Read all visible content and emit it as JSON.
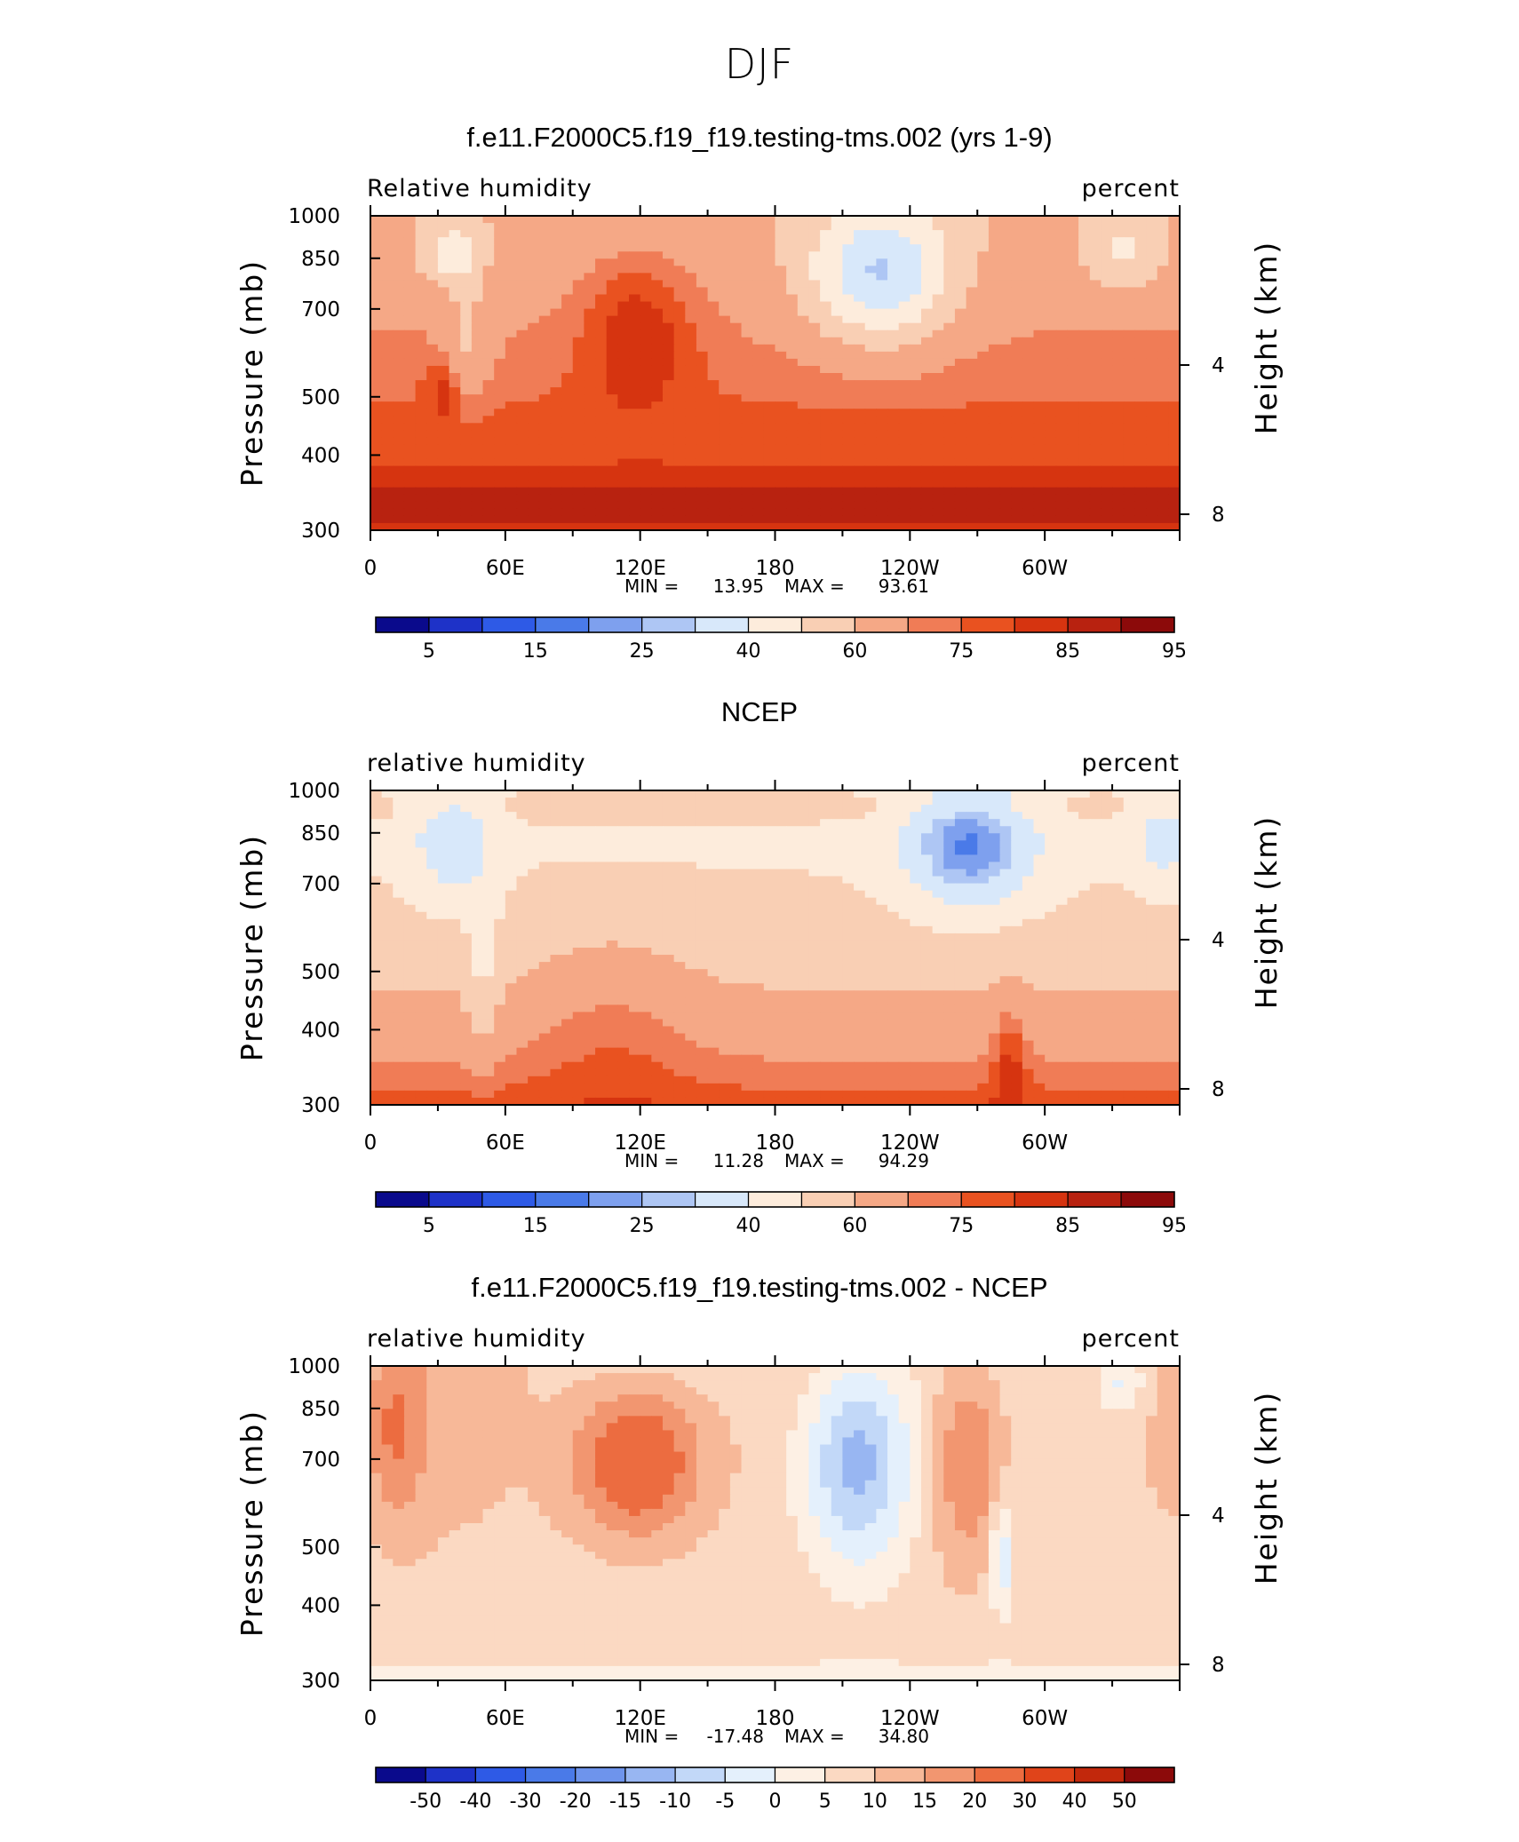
{
  "figure": {
    "title": "DJF"
  },
  "colors": {
    "levels_rh": [
      "#0a0a8c",
      "#1e32c8",
      "#2e5ae6",
      "#4a7ae8",
      "#7ea0ee",
      "#aec6f4",
      "#d8e8fa",
      "#fdecdc",
      "#f9cfb4",
      "#f5a886",
      "#f07c56",
      "#e95220",
      "#d63410",
      "#b82210",
      "#8c0a0a"
    ],
    "levels_diff": [
      "#0a0a8c",
      "#1e32c8",
      "#2e5ae6",
      "#4a7ae8",
      "#6e94ec",
      "#98b6f2",
      "#c2d8f8",
      "#e4f0fc",
      "#fdf0e4",
      "#fbd9c2",
      "#f7b898",
      "#f29670",
      "#ec6c40",
      "#e0441a",
      "#c2280c",
      "#8c0a0a"
    ],
    "mask": "#000000"
  },
  "chart_data": [
    {
      "type": "heatmap",
      "title": "f.e11.F2000C5.f19_f19.testing-tms.002 (yrs 1-9)",
      "left_label": "Relative humidity",
      "right_label": "percent",
      "ylabel": "Pressure (mb)",
      "ylabel_right": "Height (km)",
      "x_ticks": [
        "0",
        "60E",
        "120E",
        "180",
        "120W",
        "60W"
      ],
      "x_tick_lon": [
        0,
        60,
        120,
        180,
        240,
        300
      ],
      "xlim": [
        0,
        360
      ],
      "y_ticks": [
        "300",
        "400",
        "500",
        "700",
        "850",
        "1000"
      ],
      "y_tick_p": [
        300,
        400,
        500,
        700,
        850,
        1000
      ],
      "ylim": [
        1000,
        300
      ],
      "right_ticks": [
        "8",
        "4"
      ],
      "right_tick_km": [
        8,
        4
      ],
      "stats": {
        "min_label": "MIN =",
        "min": "13.95",
        "max_label": "MAX =",
        "max": "93.61"
      },
      "colorbar_labels": [
        "5",
        "15",
        "25",
        "40",
        "60",
        "75",
        "85",
        "95"
      ],
      "colorbar_bins": 15,
      "topography_mask": true
    },
    {
      "type": "heatmap",
      "title": "NCEP",
      "left_label": "relative humidity",
      "right_label": "percent",
      "ylabel": "Pressure (mb)",
      "ylabel_right": "Height (km)",
      "x_ticks": [
        "0",
        "60E",
        "120E",
        "180",
        "120W",
        "60W"
      ],
      "x_tick_lon": [
        0,
        60,
        120,
        180,
        240,
        300
      ],
      "xlim": [
        0,
        360
      ],
      "y_ticks": [
        "300",
        "400",
        "500",
        "700",
        "850",
        "1000"
      ],
      "y_tick_p": [
        300,
        400,
        500,
        700,
        850,
        1000
      ],
      "ylim": [
        1000,
        300
      ],
      "right_ticks": [
        "8",
        "4"
      ],
      "right_tick_km": [
        8,
        4
      ],
      "stats": {
        "min_label": "MIN =",
        "min": "11.28",
        "max_label": "MAX =",
        "max": "94.29"
      },
      "colorbar_labels": [
        "5",
        "15",
        "25",
        "40",
        "60",
        "75",
        "85",
        "95"
      ],
      "colorbar_bins": 15,
      "topography_mask": false
    },
    {
      "type": "heatmap",
      "title": "f.e11.F2000C5.f19_f19.testing-tms.002 - NCEP",
      "left_label": "relative humidity",
      "right_label": "percent",
      "ylabel": "Pressure (mb)",
      "ylabel_right": "Height (km)",
      "x_ticks": [
        "0",
        "60E",
        "120E",
        "180",
        "120W",
        "60W"
      ],
      "x_tick_lon": [
        0,
        60,
        120,
        180,
        240,
        300
      ],
      "xlim": [
        0,
        360
      ],
      "y_ticks": [
        "300",
        "400",
        "500",
        "700",
        "850",
        "1000"
      ],
      "y_tick_p": [
        300,
        400,
        500,
        700,
        850,
        1000
      ],
      "ylim": [
        1000,
        300
      ],
      "right_ticks": [
        "8",
        "4"
      ],
      "right_tick_km": [
        8,
        4
      ],
      "stats": {
        "min_label": "MIN =",
        "min": "-17.48",
        "max_label": "MAX =",
        "max": "34.80"
      },
      "colorbar_labels": [
        "-50",
        "-40",
        "-30",
        "-20",
        "-15",
        "-10",
        "-5",
        "0",
        "5",
        "10",
        "15",
        "20",
        "30",
        "40",
        "50"
      ],
      "colorbar_bins": 16,
      "topography_mask": true
    }
  ]
}
